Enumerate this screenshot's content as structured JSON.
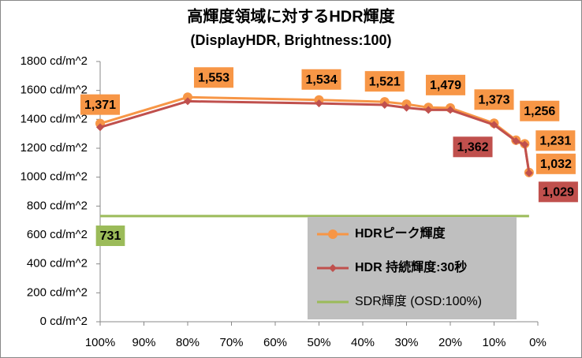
{
  "chart_data": {
    "type": "line",
    "title": "高輝度領域に対するHDR輝度",
    "subtitle": "(DisplayHDR, Brightness:100)",
    "x": [
      100,
      80,
      50,
      35,
      30,
      25,
      20,
      10,
      5,
      3,
      2
    ],
    "xlim": [
      100,
      0
    ],
    "xticks": [
      {
        "value": 100,
        "label": "100%"
      },
      {
        "value": 90,
        "label": "90%"
      },
      {
        "value": 80,
        "label": "80%"
      },
      {
        "value": 70,
        "label": "70%"
      },
      {
        "value": 60,
        "label": "60%"
      },
      {
        "value": 50,
        "label": "50%"
      },
      {
        "value": 40,
        "label": "40%"
      },
      {
        "value": 30,
        "label": "30%"
      },
      {
        "value": 20,
        "label": "20%"
      },
      {
        "value": 10,
        "label": "10%"
      },
      {
        "value": 0,
        "label": "0%"
      }
    ],
    "ylim": [
      0,
      1800
    ],
    "yticks": [
      {
        "value": 0,
        "label": "0 cd/m^2"
      },
      {
        "value": 200,
        "label": "200 cd/m^2"
      },
      {
        "value": 400,
        "label": "400 cd/m^2"
      },
      {
        "value": 600,
        "label": "600 cd/m^2"
      },
      {
        "value": 800,
        "label": "800 cd/m^2"
      },
      {
        "value": 1000,
        "label": "1000 cd/m^2"
      },
      {
        "value": 1200,
        "label": "1200 cd/m^2"
      },
      {
        "value": 1400,
        "label": "1400 cd/m^2"
      },
      {
        "value": 1600,
        "label": "1600 cd/m^2"
      },
      {
        "value": 1800,
        "label": "1800 cd/m^2"
      }
    ],
    "legend": "lower right",
    "series": [
      {
        "name": "HDRピーク輝度",
        "color": "#f79646",
        "marker": "circle",
        "values": [
          1371,
          1553,
          1534,
          1521,
          1505,
          1482,
          1479,
          1373,
          1256,
          1231,
          1032
        ],
        "value_labels": [
          "1,371",
          "1,553",
          "1,534",
          "1,521",
          null,
          null,
          "1,479",
          "1,373",
          "1,256",
          "1,231",
          "1,032"
        ]
      },
      {
        "name": "HDR 持続輝度:30秒",
        "color": "#c0504d",
        "marker": "diamond",
        "values": [
          1345,
          1525,
          1510,
          1500,
          1480,
          1465,
          1465,
          1362,
          1250,
          1225,
          1029
        ],
        "value_labels": [
          null,
          null,
          null,
          null,
          null,
          null,
          null,
          "1,362",
          null,
          null,
          "1,029"
        ]
      },
      {
        "name": "SDR輝度 (OSD:100%)",
        "color": "#9bbb59",
        "marker": "none",
        "values": [
          731,
          731,
          731,
          731,
          731,
          731,
          731,
          731,
          731,
          731,
          731
        ],
        "value_labels": [
          "731",
          null,
          null,
          null,
          null,
          null,
          null,
          null,
          null,
          null,
          null
        ]
      }
    ]
  }
}
